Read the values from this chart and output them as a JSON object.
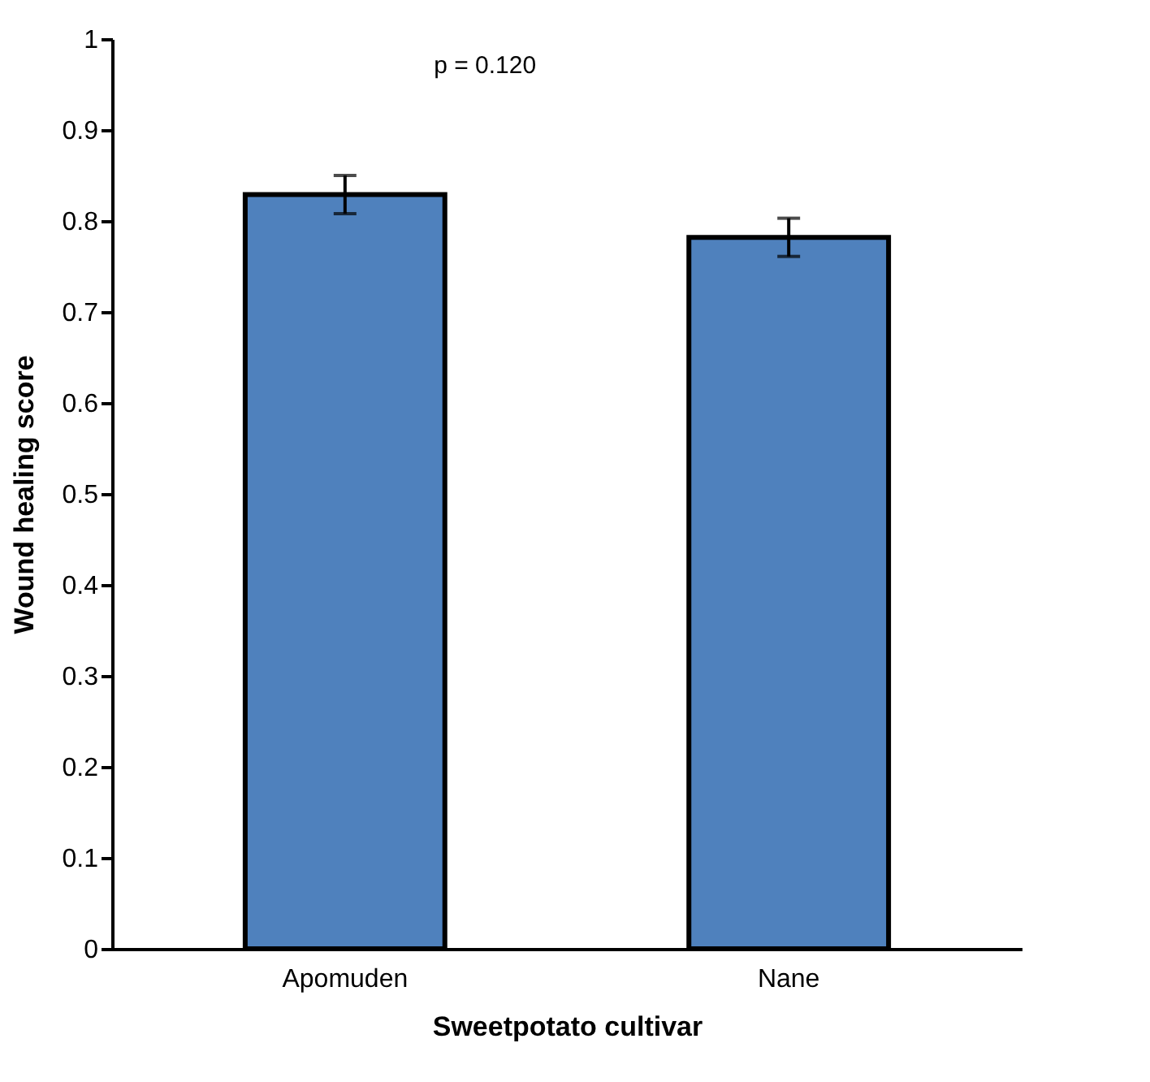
{
  "chart_data": {
    "type": "bar",
    "xlabel": "Sweetpotato cultivar",
    "ylabel": "Wound healing score",
    "categories": [
      "Apomuden",
      "Nane"
    ],
    "values": [
      0.829,
      0.782
    ],
    "errors": [
      0.021,
      0.021
    ],
    "color": "#4f81bd",
    "ylim": [
      0,
      1
    ],
    "yticks": [
      0,
      0.1,
      0.2,
      0.3,
      0.4,
      0.5,
      0.6,
      0.7,
      0.8,
      0.9,
      1
    ],
    "annotations": [
      "p = 0.120"
    ],
    "grid": false
  }
}
